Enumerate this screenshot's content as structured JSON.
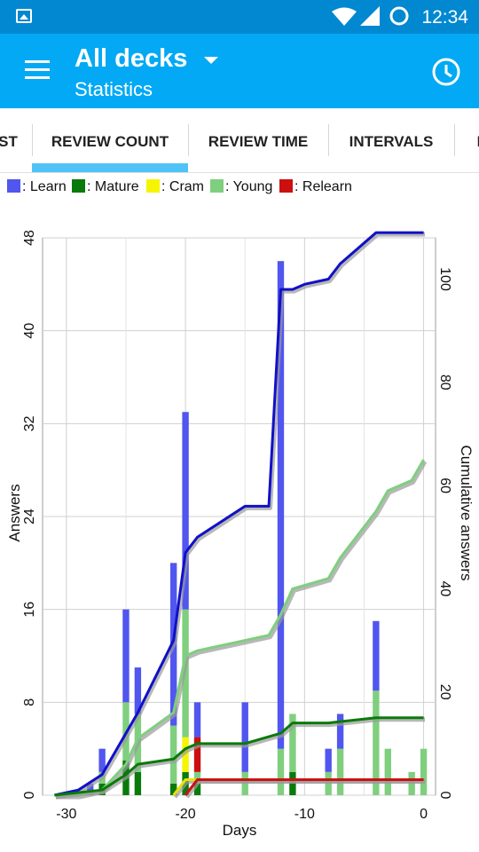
{
  "status_bar": {
    "time": "12:34",
    "icons": [
      "gallery-icon",
      "wifi-icon",
      "signal-icon",
      "sync-icon"
    ]
  },
  "app_bar": {
    "title": "All decks",
    "subtitle": "Statistics",
    "menu_icon": "hamburger-icon",
    "dropdown_icon": "caret-down-icon",
    "action_icon": "clock-icon"
  },
  "tabs": [
    {
      "label": "ST",
      "selected": false
    },
    {
      "label": "REVIEW COUNT",
      "selected": true
    },
    {
      "label": "REVIEW TIME",
      "selected": false
    },
    {
      "label": "INTERVALS",
      "selected": false
    },
    {
      "label": "I",
      "selected": false
    }
  ],
  "legend": [
    {
      "label": ": Learn",
      "color": "#5156ee"
    },
    {
      "label": ": Mature",
      "color": "#0a7a0a"
    },
    {
      "label": ": Cram",
      "color": "#f5f500"
    },
    {
      "label": ": Young",
      "color": "#7fcf7f"
    },
    {
      "label": ": Relearn",
      "color": "#cc1010"
    }
  ],
  "chart_data": {
    "type": "bar",
    "stacked": true,
    "xlabel": "Days",
    "ylabel": "Answers",
    "y2label": "Cumulative answers",
    "xlim": [
      -32,
      1
    ],
    "ylim": [
      0,
      48
    ],
    "y2lim": [
      0,
      108
    ],
    "xticks": [
      -30,
      -20,
      -10,
      0
    ],
    "yticks": [
      0,
      8,
      16,
      24,
      32,
      40,
      48
    ],
    "y2ticks": [
      0,
      20,
      40,
      60,
      80,
      100
    ],
    "grid": true,
    "series": [
      {
        "name": "Mature",
        "color": "#0a7a0a",
        "values": [
          [
            -27,
            1
          ],
          [
            -25,
            3
          ],
          [
            -24,
            2
          ],
          [
            -21,
            1
          ],
          [
            -20,
            2
          ],
          [
            -19,
            1
          ],
          [
            -11,
            2
          ]
        ]
      },
      {
        "name": "Cram",
        "color": "#f5f500",
        "values": [
          [
            -20,
            3
          ]
        ]
      },
      {
        "name": "Young",
        "color": "#7fcf7f",
        "values": [
          [
            -27,
            1
          ],
          [
            -25,
            5
          ],
          [
            -24,
            5
          ],
          [
            -21,
            5
          ],
          [
            -20,
            11
          ],
          [
            -19,
            1
          ],
          [
            -15,
            2
          ],
          [
            -12,
            4
          ],
          [
            -11,
            5
          ],
          [
            -8,
            2
          ],
          [
            -7,
            4
          ],
          [
            -4,
            9
          ],
          [
            -3,
            4
          ],
          [
            -1,
            2
          ],
          [
            0,
            4
          ]
        ]
      },
      {
        "name": "Relearn",
        "color": "#cc1010",
        "values": [
          [
            -19,
            3
          ]
        ]
      },
      {
        "name": "Learn",
        "color": "#5156ee",
        "values": [
          [
            -28,
            1
          ],
          [
            -27,
            2
          ],
          [
            -25,
            8
          ],
          [
            -24,
            4
          ],
          [
            -21,
            14
          ],
          [
            -20,
            17
          ],
          [
            -19,
            3
          ],
          [
            -15,
            6
          ],
          [
            -12,
            42
          ],
          [
            -11,
            0
          ],
          [
            -8,
            2
          ],
          [
            -7,
            3
          ],
          [
            -4,
            6
          ]
        ]
      }
    ],
    "cumulative": [
      {
        "name": "Learn",
        "color": "#1010c8",
        "points": [
          [
            -31,
            0
          ],
          [
            -29,
            1
          ],
          [
            -27,
            4
          ],
          [
            -25,
            12
          ],
          [
            -24,
            16
          ],
          [
            -21,
            30
          ],
          [
            -20,
            47
          ],
          [
            -19,
            50
          ],
          [
            -15,
            56
          ],
          [
            -13,
            56
          ],
          [
            -12,
            98
          ],
          [
            -11,
            98
          ],
          [
            -10,
            99
          ],
          [
            -8,
            100
          ],
          [
            -7,
            103
          ],
          [
            -4,
            109
          ],
          [
            0,
            109
          ]
        ]
      },
      {
        "name": "Young",
        "color": "#7fcf7f",
        "points": [
          [
            -31,
            0
          ],
          [
            -29,
            0
          ],
          [
            -27,
            1
          ],
          [
            -25,
            6
          ],
          [
            -24,
            11
          ],
          [
            -21,
            16
          ],
          [
            -20,
            27
          ],
          [
            -19,
            28
          ],
          [
            -15,
            30
          ],
          [
            -13,
            31
          ],
          [
            -12,
            35
          ],
          [
            -11,
            40
          ],
          [
            -8,
            42
          ],
          [
            -7,
            46
          ],
          [
            -4,
            55
          ],
          [
            -3,
            59
          ],
          [
            -1,
            61
          ],
          [
            0,
            65
          ]
        ]
      },
      {
        "name": "Mature",
        "color": "#0a7a0a",
        "points": [
          [
            -31,
            0
          ],
          [
            -27,
            1
          ],
          [
            -25,
            4
          ],
          [
            -24,
            6
          ],
          [
            -21,
            7
          ],
          [
            -20,
            9
          ],
          [
            -19,
            10
          ],
          [
            -15,
            10
          ],
          [
            -12,
            12
          ],
          [
            -11,
            14
          ],
          [
            -8,
            14
          ],
          [
            -4,
            15
          ],
          [
            0,
            15
          ]
        ]
      },
      {
        "name": "Cram",
        "color": "#e5e500",
        "points": [
          [
            -21,
            0
          ],
          [
            -20,
            3
          ],
          [
            0,
            3
          ]
        ]
      },
      {
        "name": "Relearn",
        "color": "#cc1010",
        "points": [
          [
            -20,
            0
          ],
          [
            -19,
            3
          ],
          [
            0,
            3
          ]
        ]
      }
    ]
  }
}
